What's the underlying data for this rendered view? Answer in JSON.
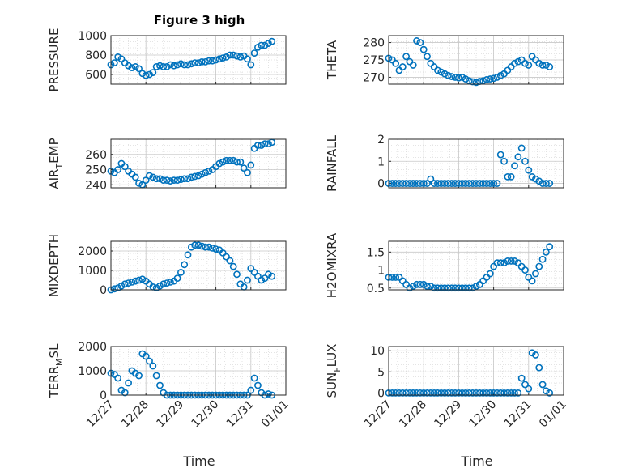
{
  "figure": {
    "title": "Figure 3 high",
    "xlabel_left": "Time",
    "xlabel_right": "Time"
  },
  "chart_data": [
    {
      "type": "scatter",
      "ylabel": "PRESSURE",
      "title": "Figure 3 high",
      "ylim": [
        500,
        1000
      ],
      "yticks": [
        "600",
        "800",
        "1000"
      ],
      "xlim": [
        0,
        5
      ],
      "xticks": [
        "12/27",
        "12/28",
        "12/29",
        "12/30",
        "12/31",
        "01/01"
      ],
      "grid": true,
      "x": [
        0.0,
        0.1,
        0.2,
        0.3,
        0.4,
        0.5,
        0.6,
        0.7,
        0.8,
        0.9,
        1.0,
        1.1,
        1.2,
        1.3,
        1.4,
        1.5,
        1.6,
        1.7,
        1.8,
        1.9,
        2.0,
        2.1,
        2.2,
        2.3,
        2.4,
        2.5,
        2.6,
        2.7,
        2.8,
        2.9,
        3.0,
        3.1,
        3.2,
        3.3,
        3.4,
        3.5,
        3.6,
        3.7,
        3.8,
        3.9,
        4.0,
        4.1,
        4.2,
        4.3,
        4.4,
        4.5,
        4.6
      ],
      "y": [
        700,
        720,
        780,
        760,
        720,
        690,
        670,
        680,
        660,
        610,
        590,
        600,
        620,
        680,
        690,
        680,
        680,
        700,
        690,
        700,
        710,
        700,
        700,
        710,
        720,
        720,
        730,
        730,
        740,
        740,
        750,
        760,
        770,
        780,
        800,
        800,
        790,
        780,
        790,
        760,
        700,
        820,
        880,
        900,
        900,
        920,
        940
      ]
    },
    {
      "type": "scatter",
      "ylabel": "THETA",
      "ylim": [
        268,
        282
      ],
      "yticks": [
        "270",
        "275",
        "280"
      ],
      "xlim": [
        0,
        5
      ],
      "xticks": [
        "12/27",
        "12/28",
        "12/29",
        "12/30",
        "12/31",
        "01/01"
      ],
      "grid": true,
      "x": [
        0.0,
        0.1,
        0.2,
        0.3,
        0.4,
        0.5,
        0.6,
        0.7,
        0.8,
        0.9,
        1.0,
        1.1,
        1.2,
        1.3,
        1.4,
        1.5,
        1.6,
        1.7,
        1.8,
        1.9,
        2.0,
        2.1,
        2.2,
        2.3,
        2.4,
        2.5,
        2.6,
        2.7,
        2.8,
        2.9,
        3.0,
        3.1,
        3.2,
        3.3,
        3.4,
        3.5,
        3.6,
        3.7,
        3.8,
        3.9,
        4.0,
        4.1,
        4.2,
        4.3,
        4.4,
        4.5,
        4.6
      ],
      "y": [
        275.5,
        275,
        274,
        272,
        273,
        276,
        274.5,
        273.5,
        280.5,
        280,
        278,
        276,
        274,
        273,
        272,
        271.5,
        271,
        270.5,
        270.2,
        270,
        269.8,
        270,
        269.5,
        269,
        268.7,
        268.5,
        268.8,
        269,
        269.3,
        269.5,
        269.7,
        270,
        270.5,
        271,
        272,
        273,
        274,
        274.5,
        275,
        274,
        273.5,
        276,
        275,
        274,
        273.5,
        273.5,
        273
      ]
    },
    {
      "type": "scatter",
      "ylabel": "AIR_TEMP",
      "ylim": [
        238,
        270
      ],
      "yticks": [
        "240",
        "250",
        "260"
      ],
      "xlim": [
        0,
        5
      ],
      "xticks": [
        "12/27",
        "12/28",
        "12/29",
        "12/30",
        "12/31",
        "01/01"
      ],
      "grid": true,
      "x": [
        0.0,
        0.1,
        0.2,
        0.3,
        0.4,
        0.5,
        0.6,
        0.7,
        0.8,
        0.9,
        1.0,
        1.1,
        1.2,
        1.3,
        1.4,
        1.5,
        1.6,
        1.7,
        1.8,
        1.9,
        2.0,
        2.1,
        2.2,
        2.3,
        2.4,
        2.5,
        2.6,
        2.7,
        2.8,
        2.9,
        3.0,
        3.1,
        3.2,
        3.3,
        3.4,
        3.5,
        3.6,
        3.7,
        3.8,
        3.9,
        4.0,
        4.1,
        4.2,
        4.3,
        4.4,
        4.5,
        4.6
      ],
      "y": [
        249,
        248,
        250,
        254,
        252,
        249,
        247,
        245,
        241,
        240,
        243,
        246,
        245,
        244,
        244,
        243,
        243,
        242.5,
        243,
        243,
        243.5,
        244,
        244,
        245,
        245.5,
        246,
        247,
        248,
        249,
        250,
        252,
        254,
        255,
        256,
        256,
        256,
        255,
        255,
        251,
        248,
        253,
        264,
        266,
        266,
        267,
        267,
        268
      ]
    },
    {
      "type": "scatter",
      "ylabel": "RAINFALL",
      "ylim": [
        -0.2,
        2
      ],
      "yticks": [
        "0",
        "1",
        "2"
      ],
      "xlim": [
        0,
        5
      ],
      "xticks": [
        "12/27",
        "12/28",
        "12/29",
        "12/30",
        "12/31",
        "01/01"
      ],
      "grid": true,
      "x": [
        0.0,
        0.1,
        0.2,
        0.3,
        0.4,
        0.5,
        0.6,
        0.7,
        0.8,
        0.9,
        1.0,
        1.1,
        1.2,
        1.3,
        1.4,
        1.5,
        1.6,
        1.7,
        1.8,
        1.9,
        2.0,
        2.1,
        2.2,
        2.3,
        2.4,
        2.5,
        2.6,
        2.7,
        2.8,
        2.9,
        3.0,
        3.1,
        3.2,
        3.3,
        3.4,
        3.5,
        3.6,
        3.7,
        3.8,
        3.9,
        4.0,
        4.1,
        4.2,
        4.3,
        4.4,
        4.5,
        4.6
      ],
      "y": [
        0,
        0,
        0,
        0,
        0,
        0,
        0,
        0,
        0,
        0,
        0,
        0,
        0.2,
        0,
        0,
        0,
        0,
        0,
        0,
        0,
        0,
        0,
        0,
        0,
        0,
        0,
        0,
        0,
        0,
        0,
        0,
        0,
        1.3,
        1,
        0.3,
        0.3,
        0.8,
        1.2,
        1.6,
        1,
        0.6,
        0.3,
        0.2,
        0.1,
        0,
        0,
        0
      ]
    },
    {
      "type": "scatter",
      "ylabel": "MIXDEPTH",
      "ylim": [
        0,
        2500
      ],
      "yticks": [
        "0",
        "1000",
        "2000"
      ],
      "xlim": [
        0,
        5
      ],
      "xticks": [
        "12/27",
        "12/28",
        "12/29",
        "12/30",
        "12/31",
        "01/01"
      ],
      "grid": true,
      "x": [
        0.0,
        0.1,
        0.2,
        0.3,
        0.4,
        0.5,
        0.6,
        0.7,
        0.8,
        0.9,
        1.0,
        1.1,
        1.2,
        1.3,
        1.4,
        1.5,
        1.6,
        1.7,
        1.8,
        1.9,
        2.0,
        2.1,
        2.2,
        2.3,
        2.4,
        2.5,
        2.6,
        2.7,
        2.8,
        2.9,
        3.0,
        3.1,
        3.2,
        3.3,
        3.4,
        3.5,
        3.6,
        3.7,
        3.8,
        3.9,
        4.0,
        4.1,
        4.2,
        4.3,
        4.4,
        4.5,
        4.6
      ],
      "y": [
        0,
        50,
        100,
        200,
        300,
        350,
        400,
        450,
        500,
        550,
        450,
        300,
        150,
        100,
        200,
        300,
        350,
        400,
        450,
        600,
        900,
        1300,
        1800,
        2200,
        2300,
        2300,
        2250,
        2200,
        2200,
        2150,
        2100,
        2050,
        1900,
        1700,
        1500,
        1200,
        800,
        300,
        150,
        500,
        1100,
        900,
        700,
        500,
        600,
        800,
        700
      ]
    },
    {
      "type": "scatter",
      "ylabel": "H2OMIXRA",
      "ylim": [
        0.45,
        1.8
      ],
      "yticks": [
        "0.5",
        "1",
        "1.5"
      ],
      "xlim": [
        0,
        5
      ],
      "xticks": [
        "12/27",
        "12/28",
        "12/29",
        "12/30",
        "12/31",
        "01/01"
      ],
      "grid": true,
      "x": [
        0.0,
        0.1,
        0.2,
        0.3,
        0.4,
        0.5,
        0.6,
        0.7,
        0.8,
        0.9,
        1.0,
        1.1,
        1.2,
        1.3,
        1.4,
        1.5,
        1.6,
        1.7,
        1.8,
        1.9,
        2.0,
        2.1,
        2.2,
        2.3,
        2.4,
        2.5,
        2.6,
        2.7,
        2.8,
        2.9,
        3.0,
        3.1,
        3.2,
        3.3,
        3.4,
        3.5,
        3.6,
        3.7,
        3.8,
        3.9,
        4.0,
        4.1,
        4.2,
        4.3,
        4.4,
        4.5,
        4.6
      ],
      "y": [
        0.8,
        0.8,
        0.8,
        0.8,
        0.7,
        0.6,
        0.5,
        0.55,
        0.6,
        0.6,
        0.6,
        0.55,
        0.55,
        0.5,
        0.5,
        0.5,
        0.5,
        0.5,
        0.5,
        0.5,
        0.5,
        0.5,
        0.5,
        0.5,
        0.5,
        0.55,
        0.6,
        0.7,
        0.8,
        0.9,
        1.1,
        1.2,
        1.2,
        1.2,
        1.25,
        1.25,
        1.25,
        1.2,
        1.1,
        1.0,
        0.8,
        0.7,
        0.9,
        1.1,
        1.3,
        1.5,
        1.65
      ]
    },
    {
      "type": "scatter",
      "ylabel": "TERR_MSL",
      "ylim": [
        0,
        2000
      ],
      "yticks": [
        "0",
        "1000",
        "2000"
      ],
      "xlim": [
        0,
        5
      ],
      "xticks": [
        "12/27",
        "12/28",
        "12/29",
        "12/30",
        "12/31",
        "01/01"
      ],
      "grid": true,
      "x": [
        0.0,
        0.1,
        0.2,
        0.3,
        0.4,
        0.5,
        0.6,
        0.7,
        0.8,
        0.9,
        1.0,
        1.1,
        1.2,
        1.3,
        1.4,
        1.5,
        1.6,
        1.7,
        1.8,
        1.9,
        2.0,
        2.1,
        2.2,
        2.3,
        2.4,
        2.5,
        2.6,
        2.7,
        2.8,
        2.9,
        3.0,
        3.1,
        3.2,
        3.3,
        3.4,
        3.5,
        3.6,
        3.7,
        3.8,
        3.9,
        4.0,
        4.1,
        4.2,
        4.3,
        4.4,
        4.5,
        4.6
      ],
      "y": [
        900,
        850,
        700,
        200,
        100,
        500,
        1000,
        900,
        800,
        1700,
        1600,
        1400,
        1200,
        800,
        400,
        100,
        0,
        0,
        0,
        0,
        0,
        0,
        0,
        0,
        0,
        0,
        0,
        0,
        0,
        0,
        0,
        0,
        0,
        0,
        0,
        0,
        0,
        0,
        0,
        0,
        200,
        700,
        400,
        100,
        0,
        50,
        0
      ]
    },
    {
      "type": "scatter",
      "ylabel": "SUN_FLUX",
      "ylim": [
        -0.5,
        11
      ],
      "yticks": [
        "0",
        "5",
        "10"
      ],
      "xlim": [
        0,
        5
      ],
      "xticks": [
        "12/27",
        "12/28",
        "12/29",
        "12/30",
        "12/31",
        "01/01"
      ],
      "grid": true,
      "x": [
        0.0,
        0.1,
        0.2,
        0.3,
        0.4,
        0.5,
        0.6,
        0.7,
        0.8,
        0.9,
        1.0,
        1.1,
        1.2,
        1.3,
        1.4,
        1.5,
        1.6,
        1.7,
        1.8,
        1.9,
        2.0,
        2.1,
        2.2,
        2.3,
        2.4,
        2.5,
        2.6,
        2.7,
        2.8,
        2.9,
        3.0,
        3.1,
        3.2,
        3.3,
        3.4,
        3.5,
        3.6,
        3.7,
        3.8,
        3.9,
        4.0,
        4.1,
        4.2,
        4.3,
        4.4,
        4.5,
        4.6
      ],
      "y": [
        0,
        0,
        0,
        0,
        0,
        0,
        0,
        0,
        0,
        0,
        0,
        0,
        0,
        0,
        0,
        0,
        0,
        0,
        0,
        0,
        0,
        0,
        0,
        0,
        0,
        0,
        0,
        0,
        0,
        0,
        0,
        0,
        0,
        0,
        0,
        0,
        0,
        0,
        3.5,
        2,
        1,
        9.5,
        9,
        6,
        2,
        0.5,
        0
      ]
    }
  ],
  "ylabel_parts": [
    {
      "main": "PRESSURE"
    },
    {
      "main": "THETA"
    },
    {
      "pre": "AIR",
      "sub": "T",
      "post": "EMP"
    },
    {
      "main": "RAINFALL"
    },
    {
      "main": "MIXDEPTH"
    },
    {
      "main": "H2OMIXRA"
    },
    {
      "pre": "TERR",
      "sub": "M",
      "post": "SL"
    },
    {
      "pre": "SUN",
      "sub": "F",
      "post": "LUX"
    }
  ],
  "colors": {
    "marker": "#0072BD",
    "axis": "#262626",
    "grid": "#dcdcdc",
    "background": "#ffffff"
  }
}
